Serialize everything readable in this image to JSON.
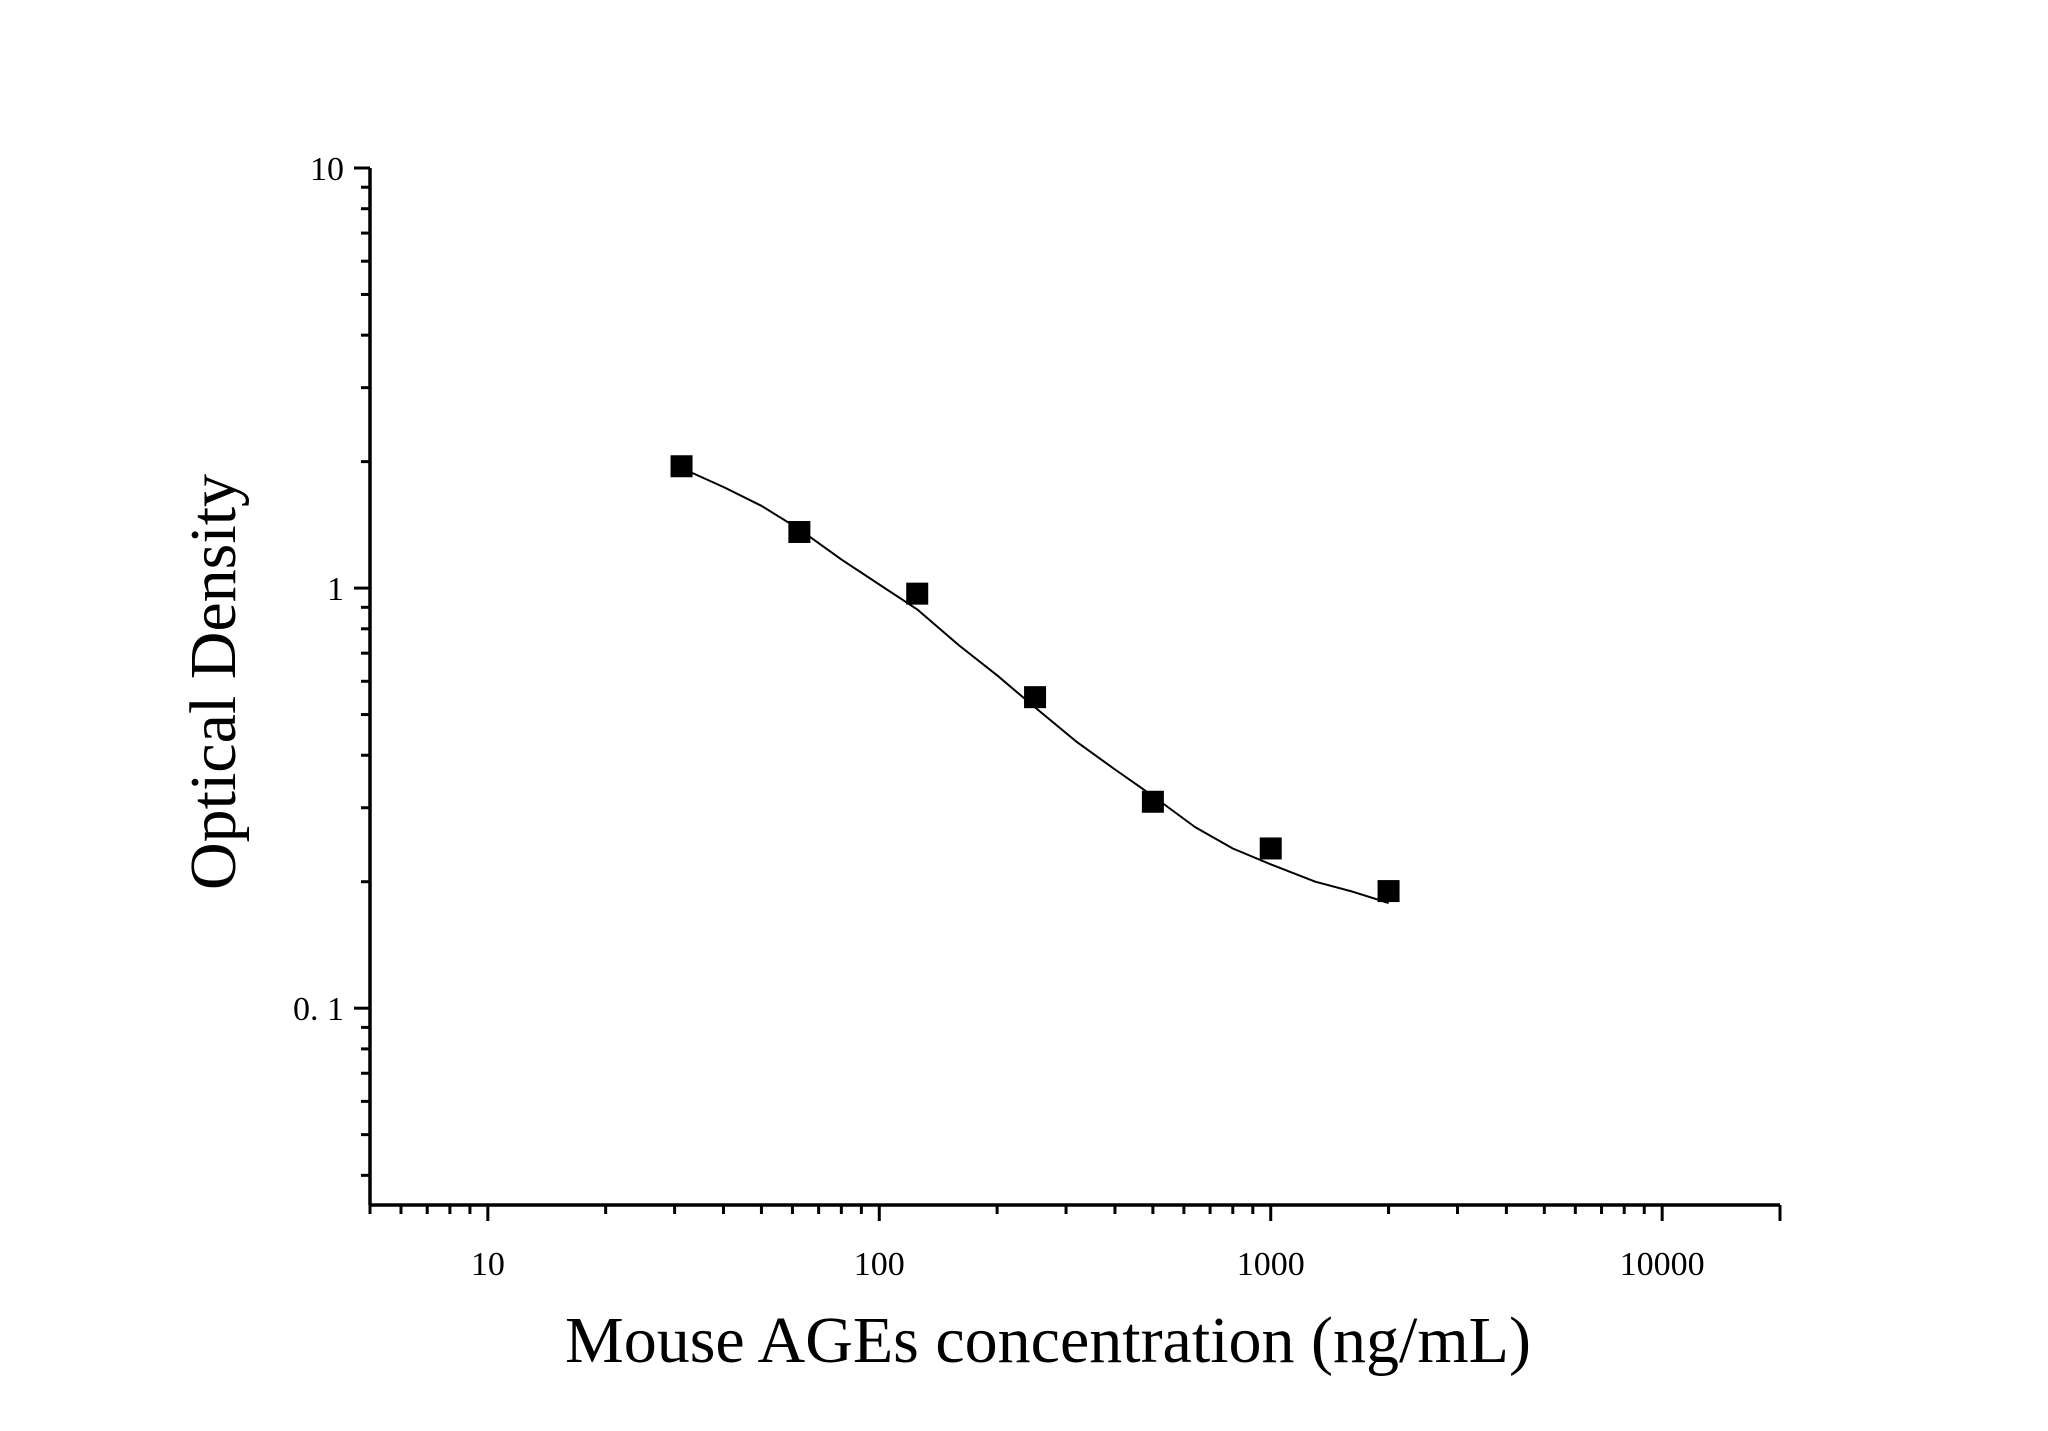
{
  "chart_data": {
    "type": "scatter",
    "title": "",
    "xlabel": "Mouse AGEs concentration (ng/mL)",
    "ylabel": "Optical Density",
    "x_scale": "log",
    "y_scale": "log",
    "xlim": [
      5,
      20000
    ],
    "ylim": [
      0.034,
      10
    ],
    "x_ticks": [
      {
        "value": 10,
        "label": "10"
      },
      {
        "value": 100,
        "label": "100"
      },
      {
        "value": 1000,
        "label": "1000"
      },
      {
        "value": 10000,
        "label": "10000"
      }
    ],
    "y_ticks": [
      {
        "value": 0.1,
        "label": "0. 1"
      },
      {
        "value": 1,
        "label": "1"
      },
      {
        "value": 10,
        "label": "10"
      }
    ],
    "grid": false,
    "legend": "none",
    "series": [
      {
        "points": [
          {
            "x": 31.25,
            "y": 1.95
          },
          {
            "x": 62.5,
            "y": 1.36
          },
          {
            "x": 125,
            "y": 0.97
          },
          {
            "x": 250,
            "y": 0.55
          },
          {
            "x": 500,
            "y": 0.31
          },
          {
            "x": 1000,
            "y": 0.24
          },
          {
            "x": 2000,
            "y": 0.19
          }
        ],
        "marker": "square",
        "color": "#000000"
      }
    ],
    "fit_curve": {
      "x": [
        31.25,
        40,
        50,
        62.5,
        80,
        100,
        125,
        160,
        200,
        250,
        320,
        400,
        500,
        640,
        800,
        1000,
        1300,
        1600,
        2000
      ],
      "y": [
        1.93,
        1.74,
        1.57,
        1.38,
        1.17,
        1.02,
        0.89,
        0.73,
        0.62,
        0.52,
        0.43,
        0.37,
        0.32,
        0.27,
        0.24,
        0.22,
        0.2,
        0.19,
        0.178
      ],
      "color": "#000000"
    }
  }
}
